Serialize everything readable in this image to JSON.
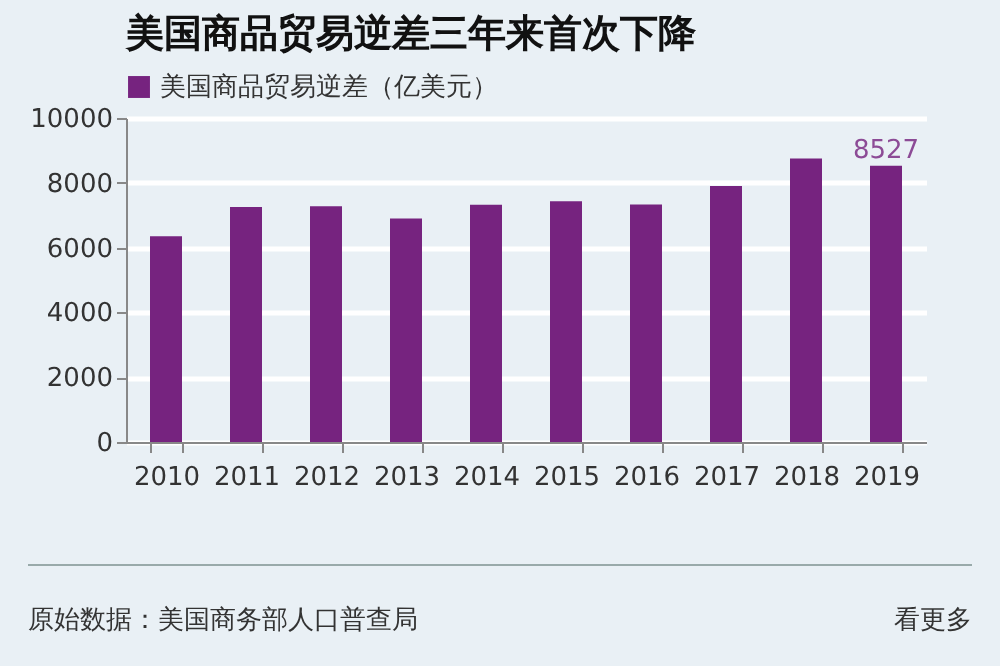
{
  "chart_data": {
    "type": "bar",
    "title": "美国商品贸易逆差三年来首次下降",
    "categories": [
      "2010",
      "2011",
      "2012",
      "2013",
      "2014",
      "2015",
      "2016",
      "2017",
      "2018",
      "2019"
    ],
    "series": [
      {
        "name": "美国商品贸易逆差（亿美元）",
        "color": "#76237f",
        "values": [
          6350,
          7250,
          7280,
          6900,
          7320,
          7430,
          7330,
          7900,
          8750,
          8527
        ],
        "value_labels": [
          null,
          null,
          null,
          null,
          null,
          null,
          null,
          null,
          null,
          "8527"
        ]
      }
    ],
    "ylim": [
      0,
      10000
    ],
    "yticks": [
      0,
      2000,
      4000,
      6000,
      8000,
      10000
    ],
    "grid": "y",
    "legend": "top left",
    "annotations": [
      "原始数据：美国商务部人口普查局",
      "看更多"
    ]
  }
}
